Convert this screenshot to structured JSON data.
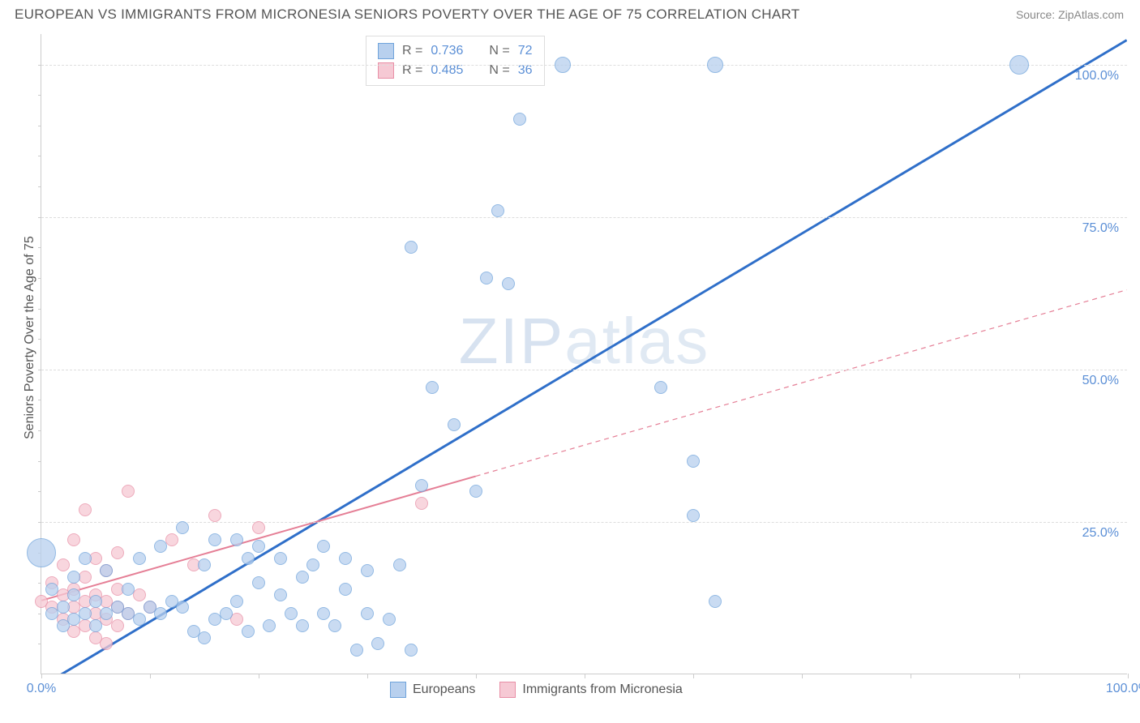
{
  "header": {
    "title": "EUROPEAN VS IMMIGRANTS FROM MICRONESIA SENIORS POVERTY OVER THE AGE OF 75 CORRELATION CHART",
    "source": "Source: ZipAtlas.com"
  },
  "chart": {
    "type": "scatter",
    "y_axis_label": "Seniors Poverty Over the Age of 75",
    "xlim": [
      0,
      100
    ],
    "ylim": [
      0,
      105
    ],
    "x_ticks": [
      0,
      10,
      20,
      30,
      40,
      50,
      60,
      70,
      80,
      90,
      100
    ],
    "x_tick_labels": {
      "0": "0.0%",
      "100": "100.0%"
    },
    "y_gridlines": [
      25,
      50,
      75,
      100
    ],
    "y_tick_labels": {
      "25": "25.0%",
      "50": "50.0%",
      "75": "75.0%",
      "100": "100.0%"
    },
    "y_minor_ticks": [
      5,
      10,
      15,
      20,
      25,
      30,
      35,
      40,
      45,
      50,
      55,
      60,
      65,
      70,
      75,
      80,
      85,
      90,
      95,
      100
    ],
    "background_color": "#ffffff",
    "grid_color": "#dddddd",
    "axis_color": "#cccccc",
    "tick_label_color": "#5b8fd6",
    "label_fontsize": 16,
    "watermark_text": "ZIPatlas",
    "series": {
      "europeans": {
        "label": "Europeans",
        "color_fill": "#b8d0ee",
        "color_stroke": "#6fa3db",
        "marker_radius": 8,
        "line_color": "#2f6fc9",
        "line_width": 3,
        "trend": {
          "x1": 1,
          "y1": -1,
          "x2": 100,
          "y2": 104,
          "dash_from_x": null
        },
        "points": [
          [
            0,
            20,
            18
          ],
          [
            1,
            10,
            8
          ],
          [
            1,
            14,
            8
          ],
          [
            2,
            8,
            8
          ],
          [
            2,
            11,
            8
          ],
          [
            3,
            9,
            8
          ],
          [
            3,
            13,
            8
          ],
          [
            3,
            16,
            8
          ],
          [
            4,
            10,
            8
          ],
          [
            4,
            19,
            8
          ],
          [
            5,
            8,
            8
          ],
          [
            5,
            12,
            8
          ],
          [
            6,
            10,
            8
          ],
          [
            6,
            17,
            8
          ],
          [
            7,
            11,
            8
          ],
          [
            8,
            10,
            8
          ],
          [
            8,
            14,
            8
          ],
          [
            9,
            9,
            8
          ],
          [
            9,
            19,
            8
          ],
          [
            10,
            11,
            8
          ],
          [
            11,
            10,
            8
          ],
          [
            11,
            21,
            8
          ],
          [
            12,
            12,
            8
          ],
          [
            13,
            11,
            8
          ],
          [
            13,
            24,
            8
          ],
          [
            14,
            7,
            8
          ],
          [
            15,
            6,
            8
          ],
          [
            15,
            18,
            8
          ],
          [
            16,
            9,
            8
          ],
          [
            16,
            22,
            8
          ],
          [
            17,
            10,
            8
          ],
          [
            18,
            12,
            8
          ],
          [
            18,
            22,
            8
          ],
          [
            19,
            7,
            8
          ],
          [
            19,
            19,
            8
          ],
          [
            20,
            15,
            8
          ],
          [
            20,
            21,
            8
          ],
          [
            21,
            8,
            8
          ],
          [
            22,
            13,
            8
          ],
          [
            22,
            19,
            8
          ],
          [
            23,
            10,
            8
          ],
          [
            24,
            16,
            8
          ],
          [
            24,
            8,
            8
          ],
          [
            25,
            18,
            8
          ],
          [
            26,
            10,
            8
          ],
          [
            26,
            21,
            8
          ],
          [
            27,
            8,
            8
          ],
          [
            28,
            14,
            8
          ],
          [
            28,
            19,
            8
          ],
          [
            29,
            4,
            8
          ],
          [
            30,
            10,
            8
          ],
          [
            30,
            17,
            8
          ],
          [
            31,
            5,
            8
          ],
          [
            32,
            9,
            8
          ],
          [
            33,
            18,
            8
          ],
          [
            34,
            4,
            8
          ],
          [
            34,
            70,
            8
          ],
          [
            35,
            31,
            8
          ],
          [
            36,
            47,
            8
          ],
          [
            38,
            41,
            8
          ],
          [
            40,
            30,
            8
          ],
          [
            41,
            65,
            8
          ],
          [
            42,
            76,
            8
          ],
          [
            43,
            64,
            8
          ],
          [
            44,
            91,
            8
          ],
          [
            48,
            100,
            10
          ],
          [
            57,
            47,
            8
          ],
          [
            60,
            26,
            8
          ],
          [
            62,
            12,
            8
          ],
          [
            60,
            35,
            8
          ],
          [
            62,
            100,
            10
          ],
          [
            90,
            100,
            12
          ]
        ]
      },
      "micronesia": {
        "label": "Immigrants from Micronesia",
        "color_fill": "#f6c9d4",
        "color_stroke": "#e88fa6",
        "marker_radius": 8,
        "line_color": "#e57f96",
        "line_width": 2,
        "trend": {
          "x1": 0,
          "y1": 12,
          "x2": 100,
          "y2": 63,
          "dash_from_x": 40
        },
        "points": [
          [
            0,
            12,
            8
          ],
          [
            1,
            11,
            8
          ],
          [
            1,
            15,
            8
          ],
          [
            2,
            9,
            8
          ],
          [
            2,
            13,
            8
          ],
          [
            2,
            18,
            8
          ],
          [
            3,
            7,
            8
          ],
          [
            3,
            11,
            8
          ],
          [
            3,
            14,
            8
          ],
          [
            3,
            22,
            8
          ],
          [
            4,
            8,
            8
          ],
          [
            4,
            12,
            8
          ],
          [
            4,
            16,
            8
          ],
          [
            4,
            27,
            8
          ],
          [
            5,
            6,
            8
          ],
          [
            5,
            10,
            8
          ],
          [
            5,
            13,
            8
          ],
          [
            5,
            19,
            8
          ],
          [
            6,
            5,
            8
          ],
          [
            6,
            9,
            8
          ],
          [
            6,
            12,
            8
          ],
          [
            6,
            17,
            8
          ],
          [
            7,
            8,
            8
          ],
          [
            7,
            11,
            8
          ],
          [
            7,
            14,
            8
          ],
          [
            7,
            20,
            8
          ],
          [
            8,
            10,
            8
          ],
          [
            8,
            30,
            8
          ],
          [
            9,
            13,
            8
          ],
          [
            10,
            11,
            8
          ],
          [
            12,
            22,
            8
          ],
          [
            14,
            18,
            8
          ],
          [
            16,
            26,
            8
          ],
          [
            18,
            9,
            8
          ],
          [
            20,
            24,
            8
          ],
          [
            35,
            28,
            8
          ]
        ]
      }
    },
    "legend_top": [
      {
        "swatch_fill": "#b8d0ee",
        "swatch_stroke": "#6fa3db",
        "r_label": "R =",
        "r_val": "0.736",
        "n_label": "N =",
        "n_val": "72"
      },
      {
        "swatch_fill": "#f6c9d4",
        "swatch_stroke": "#e88fa6",
        "r_label": "R =",
        "r_val": "0.485",
        "n_label": "N =",
        "n_val": "36"
      }
    ],
    "legend_bottom": [
      {
        "swatch_fill": "#b8d0ee",
        "swatch_stroke": "#6fa3db",
        "label": "Europeans"
      },
      {
        "swatch_fill": "#f6c9d4",
        "swatch_stroke": "#e88fa6",
        "label": "Immigrants from Micronesia"
      }
    ]
  }
}
